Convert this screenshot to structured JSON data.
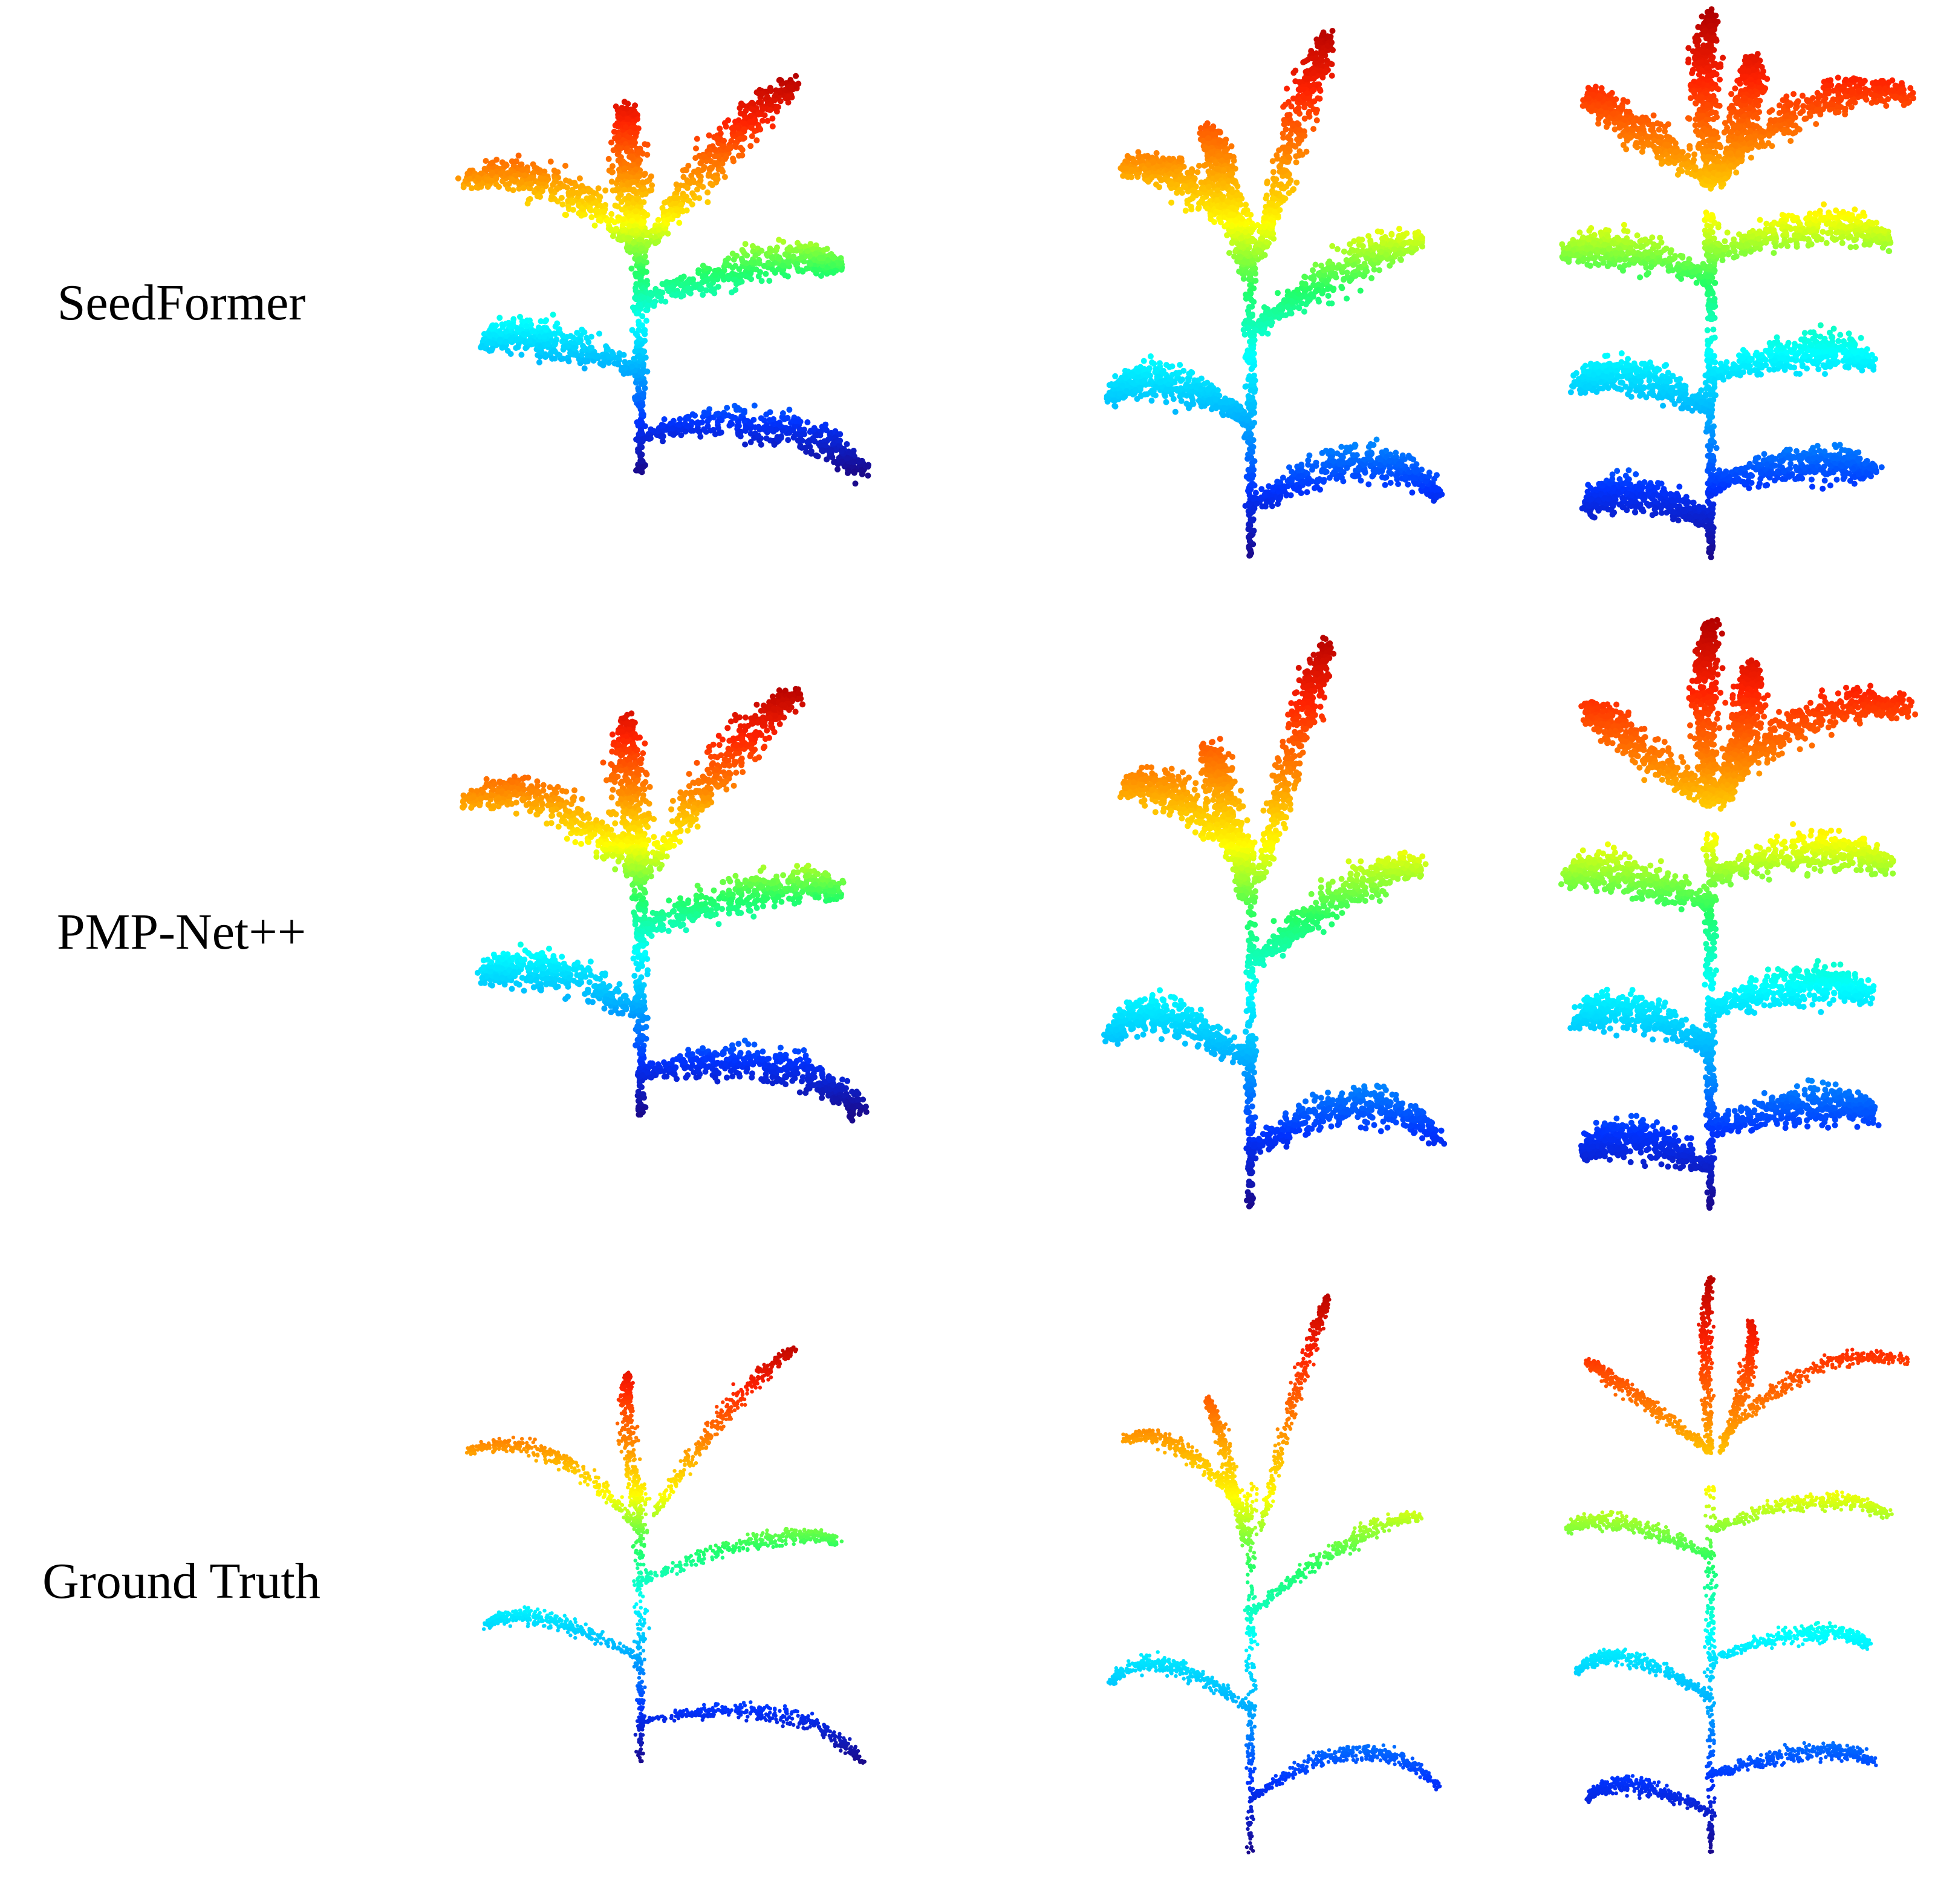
{
  "rows": [
    {
      "label": "SeedFormer",
      "style": "noisy"
    },
    {
      "label": "PMP-Net++",
      "style": "noisy"
    },
    {
      "label": "Ground Truth",
      "style": "clean"
    }
  ],
  "colormap": [
    "#1a0a8c",
    "#0033ff",
    "#00aaff",
    "#00ffff",
    "#22ff66",
    "#ffff00",
    "#ff8800",
    "#ff2200",
    "#b00000"
  ]
}
